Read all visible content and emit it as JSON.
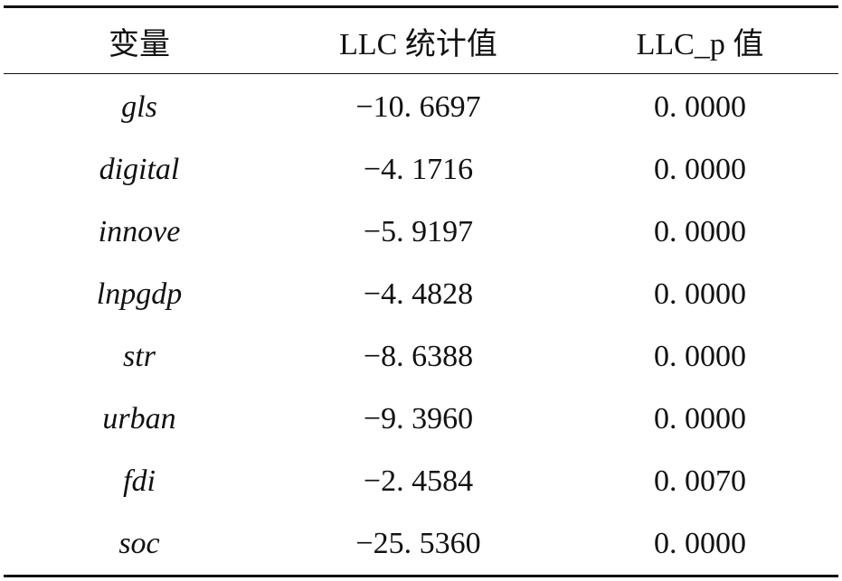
{
  "table": {
    "headers": [
      "变量",
      "LLC 统计值",
      "LLC_p 值"
    ],
    "rows": [
      {
        "variable": "gls",
        "llc_stat": "−10. 6697",
        "llc_p": "0. 0000"
      },
      {
        "variable": "digital",
        "llc_stat": "−4. 1716",
        "llc_p": "0. 0000"
      },
      {
        "variable": "innove",
        "llc_stat": "−5. 9197",
        "llc_p": "0. 0000"
      },
      {
        "variable": "lnpgdp",
        "llc_stat": "−4. 4828",
        "llc_p": "0. 0000"
      },
      {
        "variable": "str",
        "llc_stat": "−8. 6388",
        "llc_p": "0. 0000"
      },
      {
        "variable": "urban",
        "llc_stat": "−9. 3960",
        "llc_p": "0. 0000"
      },
      {
        "variable": "fdi",
        "llc_stat": "−2. 4584",
        "llc_p": "0. 0070"
      },
      {
        "variable": "soc",
        "llc_stat": "−25. 5360",
        "llc_p": "0. 0000"
      }
    ]
  }
}
